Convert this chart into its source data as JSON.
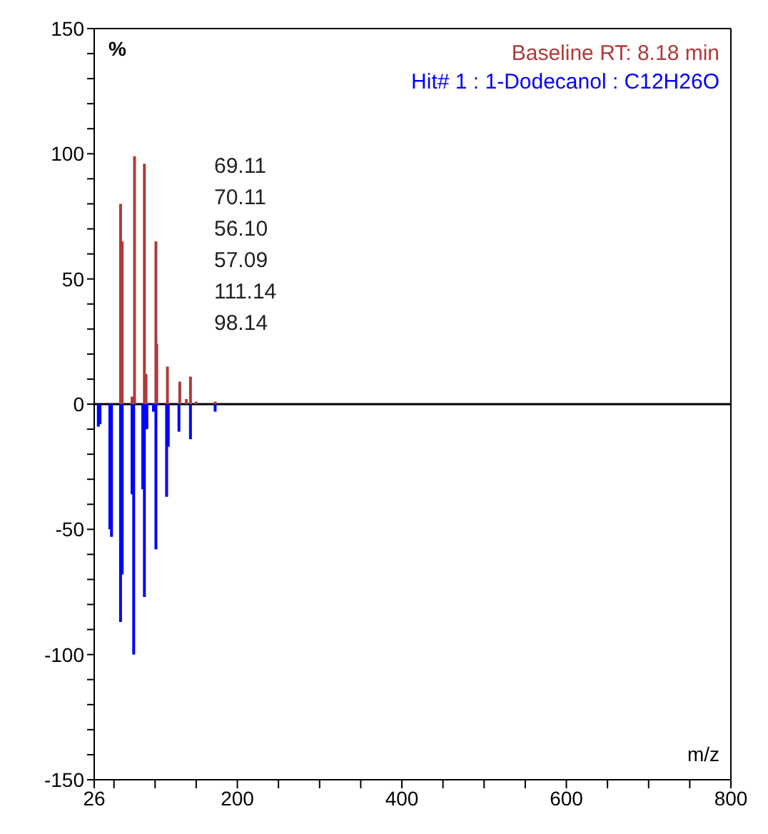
{
  "chart_data": {
    "type": "bar",
    "xlabel": "m/z",
    "ylabel": "%",
    "series": [
      {
        "name": "Baseline  RT: 8.18 min",
        "color": "#b03a3a",
        "x": [
          58,
          60,
          72,
          75,
          87,
          89,
          101,
          102,
          115,
          130,
          138,
          143,
          150,
          173
        ],
        "values": [
          80,
          65,
          3,
          99,
          96,
          12,
          65,
          24,
          15,
          9,
          2,
          11,
          1,
          1
        ]
      },
      {
        "name": "Hit# 1 : 1-Dodecanol : C12H26O",
        "color": "#0000ff",
        "x": [
          31,
          33,
          45,
          47,
          58,
          60,
          72,
          74,
          85,
          87,
          90,
          98,
          101,
          114,
          116,
          129,
          143,
          173
        ],
        "values": [
          -9,
          -8,
          -50,
          -53,
          -87,
          -68,
          -36,
          -100,
          -34,
          -77,
          -10,
          -3,
          -58,
          -37,
          -17,
          -11,
          -14,
          -3
        ]
      }
    ],
    "annotations": [
      "69.11",
      "70.11",
      "56.10",
      "57.09",
      "111.14",
      "98.14"
    ],
    "ref_lines": [
      {
        "axis": "y",
        "value": 0,
        "color": "#000000"
      }
    ],
    "xlim": [
      26,
      800
    ],
    "xticks": [
      26,
      {
        "value": 50,
        "label": null
      },
      {
        "value": 100,
        "label": null
      },
      {
        "value": 150,
        "label": null
      },
      200,
      {
        "value": 250,
        "label": null
      },
      {
        "value": 300,
        "label": null
      },
      {
        "value": 350,
        "label": null
      },
      400,
      {
        "value": 450,
        "label": null
      },
      {
        "value": 500,
        "label": null
      },
      {
        "value": 550,
        "label": null
      },
      600,
      {
        "value": 650,
        "label": null
      },
      {
        "value": 700,
        "label": null
      },
      {
        "value": 750,
        "label": null
      },
      800
    ],
    "ylim": [
      -150,
      150
    ],
    "yticks": [
      -150,
      {
        "value": -140,
        "label": null
      },
      {
        "value": -130,
        "label": null
      },
      {
        "value": -120,
        "label": null
      },
      {
        "value": -110,
        "label": null
      },
      -100,
      {
        "value": -90,
        "label": null
      },
      {
        "value": -80,
        "label": null
      },
      {
        "value": -70,
        "label": null
      },
      {
        "value": -60,
        "label": null
      },
      -50,
      {
        "value": -40,
        "label": null
      },
      {
        "value": -30,
        "label": null
      },
      {
        "value": -20,
        "label": null
      },
      {
        "value": -10,
        "label": null
      },
      0,
      {
        "value": 10,
        "label": null
      },
      {
        "value": 20,
        "label": null
      },
      {
        "value": 30,
        "label": null
      },
      {
        "value": 40,
        "label": null
      },
      50,
      {
        "value": 60,
        "label": null
      },
      {
        "value": 70,
        "label": null
      },
      {
        "value": 80,
        "label": null
      },
      {
        "value": 90,
        "label": null
      },
      100,
      {
        "value": 110,
        "label": null
      },
      {
        "value": 120,
        "label": null
      },
      {
        "value": 130,
        "label": null
      },
      {
        "value": 140,
        "label": null
      },
      150
    ],
    "legend": "top right",
    "grid": false
  }
}
